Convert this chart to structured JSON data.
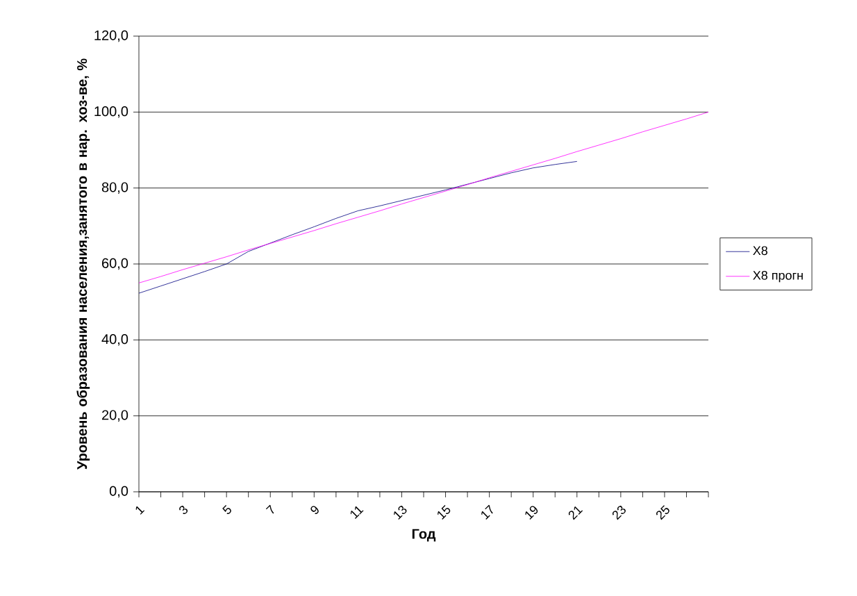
{
  "chart_data": {
    "type": "line",
    "xlabel": "Год",
    "ylabel": "Уровень образования населения,занятого в нар. хоз-ве, %",
    "categories": [
      "1",
      null,
      "3",
      null,
      "5",
      null,
      "7",
      null,
      "9",
      null,
      "11",
      null,
      "13",
      null,
      "15",
      null,
      "17",
      null,
      "19",
      null,
      "21",
      null,
      "23",
      null,
      "25",
      null,
      null
    ],
    "series": [
      {
        "name": "X8",
        "color": "#000080",
        "values": [
          52.3,
          54.2,
          56.1,
          58.0,
          60.0,
          63.3,
          65.5,
          67.7,
          69.8,
          72.0,
          74.0,
          75.3,
          76.7,
          78.1,
          79.5,
          81.0,
          82.5,
          84.0,
          85.3,
          86.2,
          87.0,
          null,
          null,
          null,
          null,
          null,
          null
        ]
      },
      {
        "name": "X8 прогн",
        "color": "#ff00ff",
        "values": [
          55.0,
          56.7,
          58.5,
          60.2,
          61.9,
          63.7,
          65.4,
          67.1,
          68.8,
          70.6,
          72.3,
          74.0,
          75.8,
          77.5,
          79.2,
          80.9,
          82.7,
          84.4,
          86.1,
          87.8,
          89.6,
          91.3,
          93.0,
          94.8,
          96.5,
          98.2,
          100.0
        ]
      }
    ],
    "ylim": [
      0,
      120
    ],
    "yticks": [
      {
        "value": 0,
        "label": "0,0"
      },
      {
        "value": 20,
        "label": "20,0"
      },
      {
        "value": 40,
        "label": "40,0"
      },
      {
        "value": 60,
        "label": "60,0"
      },
      {
        "value": 80,
        "label": "80,0"
      },
      {
        "value": 100,
        "label": "100,0"
      },
      {
        "value": 120,
        "label": "120,0"
      }
    ],
    "grid": "y",
    "legend": "right"
  }
}
